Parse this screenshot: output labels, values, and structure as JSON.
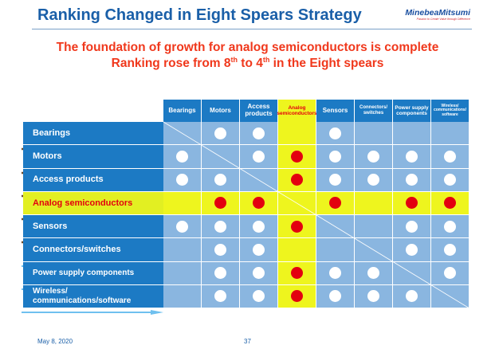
{
  "header": {
    "title": "Ranking Changed in Eight Spears Strategy",
    "logo_name": "MinebeaMitsumi",
    "logo_tagline": "Passion to Create Value through Difference"
  },
  "subtitle": {
    "line1": "The foundation of growth for analog semiconductors is complete",
    "line2_a": "Ranking rose from 8",
    "line2_sup1": "th",
    "line2_b": " to 4",
    "line2_sup2": "th",
    "line2_c": " in the Eight spears"
  },
  "columns": [
    "Bearings",
    "Motors",
    "Access products",
    "Analog semiconductors",
    "Sensors",
    "Connectors/ switches",
    "Power supply components",
    "Wireless/ communications/ software"
  ],
  "rows": [
    "Bearings",
    "Motors",
    "Access products",
    "Analog semiconductors",
    "Sensors",
    "Connectors/switches",
    "Power supply components",
    "Wireless/ communications/software"
  ],
  "highlight_index": 3,
  "matrix": [
    [
      "-",
      "w",
      "w",
      "",
      "w",
      "",
      "",
      ""
    ],
    [
      "w",
      "-",
      "w",
      "r",
      "w",
      "w",
      "w",
      "w"
    ],
    [
      "w",
      "w",
      "-",
      "r",
      "w",
      "w",
      "w",
      "w"
    ],
    [
      "",
      "r",
      "r",
      "-",
      "r",
      "",
      "r",
      "r"
    ],
    [
      "w",
      "w",
      "w",
      "r",
      "-",
      "",
      "w",
      "w"
    ],
    [
      "",
      "w",
      "w",
      "",
      "",
      "-",
      "w",
      "w"
    ],
    [
      "",
      "w",
      "w",
      "r",
      "w",
      "w",
      "-",
      "w"
    ],
    [
      "",
      "w",
      "w",
      "r",
      "w",
      "w",
      "w",
      "-"
    ]
  ],
  "colors": {
    "blue": "#1c7ac4",
    "light_blue": "#8ab6e0",
    "yellow": "#eef51e",
    "red": "#e3000f"
  },
  "footer": {
    "date": "May 8, 2020",
    "page": "37"
  }
}
